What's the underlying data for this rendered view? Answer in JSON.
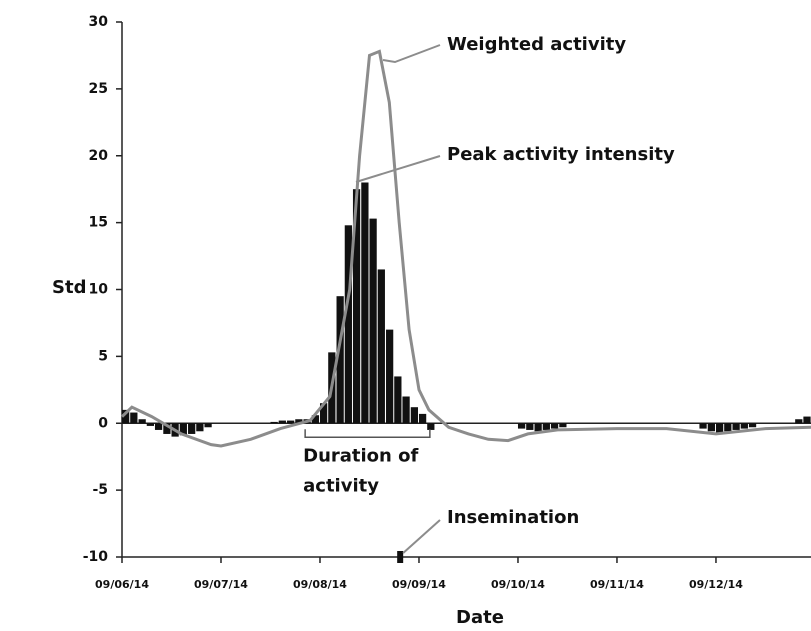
{
  "chart_data": {
    "type": "bar",
    "ylabel": "Std",
    "xlabel": "Date",
    "ylim": [
      -10,
      30
    ],
    "yticks": [
      -10,
      -5,
      0,
      5,
      10,
      15,
      20,
      25,
      30
    ],
    "xlim": [
      0,
      6.96
    ],
    "xticks": [
      {
        "value": 0,
        "label": "09/06/14"
      },
      {
        "value": 1,
        "label": "09/07/14"
      },
      {
        "value": 2,
        "label": "09/08/14"
      },
      {
        "value": 3,
        "label": "09/09/14"
      },
      {
        "value": 4,
        "label": "09/10/14"
      },
      {
        "value": 5,
        "label": "09/11/14"
      },
      {
        "value": 6,
        "label": "09/12/14"
      }
    ],
    "bar_width": 0.0833,
    "bars": {
      "color": "#111111",
      "x": [
        0,
        0.083,
        0.167,
        0.25,
        0.333,
        0.417,
        0.5,
        0.583,
        0.667,
        0.75,
        0.833,
        1.5,
        1.583,
        1.667,
        1.75,
        1.833,
        1.917,
        2.0,
        2.083,
        2.167,
        2.25,
        2.333,
        2.417,
        2.5,
        2.583,
        2.667,
        2.75,
        2.833,
        2.917,
        3.0,
        3.083,
        4.0,
        4.083,
        4.167,
        4.25,
        4.333,
        4.417,
        5.833,
        5.917,
        6.0,
        6.083,
        6.167,
        6.25,
        6.333,
        6.8,
        6.883
      ],
      "values": [
        1.0,
        0.8,
        0.3,
        -0.2,
        -0.5,
        -0.8,
        -1.0,
        -0.9,
        -0.8,
        -0.6,
        -0.3,
        0.1,
        0.2,
        0.2,
        0.3,
        0.3,
        0.6,
        1.5,
        5.3,
        9.5,
        14.8,
        17.5,
        18.0,
        15.3,
        11.5,
        7.0,
        3.5,
        2.0,
        1.2,
        0.7,
        -0.5,
        -0.4,
        -0.5,
        -0.6,
        -0.5,
        -0.4,
        -0.3,
        -0.4,
        -0.6,
        -0.7,
        -0.6,
        -0.5,
        -0.4,
        -0.3,
        0.3,
        0.5
      ]
    },
    "line": {
      "name": "Weighted activity",
      "color": "#8c8c8c",
      "x": [
        0,
        0.1,
        0.3,
        0.6,
        0.9,
        1.0,
        1.3,
        1.6,
        1.9,
        2.1,
        2.3,
        2.4,
        2.5,
        2.6,
        2.7,
        2.8,
        2.9,
        3.0,
        3.1,
        3.3,
        3.5,
        3.7,
        3.9,
        4.1,
        4.4,
        5.0,
        5.5,
        6.0,
        6.5,
        6.96
      ],
      "values": [
        0.5,
        1.2,
        0.5,
        -0.8,
        -1.6,
        -1.7,
        -1.2,
        -0.4,
        0.2,
        2,
        10,
        20,
        27.5,
        27.8,
        24,
        15,
        7,
        2.5,
        1,
        -0.3,
        -0.8,
        -1.2,
        -1.3,
        -0.8,
        -0.5,
        -0.4,
        -0.4,
        -0.8,
        -0.4,
        -0.3
      ]
    },
    "peak_label": "Peak activity intensity",
    "duration": {
      "lines": [
        "Duration of",
        "activity"
      ],
      "x": [
        1.85,
        3.11
      ]
    },
    "insemination": {
      "label": "Insemination",
      "x": 2.81,
      "y": -10
    }
  }
}
